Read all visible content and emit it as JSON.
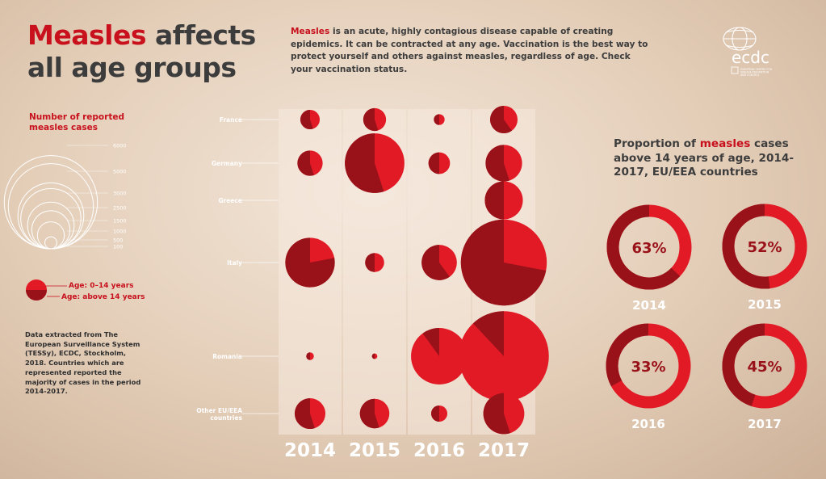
{
  "title": {
    "part1": "Measles",
    "part2": "affects",
    "line2": "all age groups"
  },
  "intro": {
    "highlight": "Measles",
    "text": " is an acute, highly contagious disease capable of creating epidemics. It can be contracted at any age. Vaccination is the best way to protect yourself and others against measles, regardless of age. Check your vaccination status."
  },
  "logo": {
    "name": "ecdc",
    "tagline": "EUROPEAN CENTRE FOR DISEASE PREVENTION AND CONTROL"
  },
  "size_legend": {
    "title": "Number of reported measles cases",
    "levels": [
      {
        "label": "6000",
        "value": 6000
      },
      {
        "label": "5000",
        "value": 5000
      },
      {
        "label": "3000",
        "value": 3000
      },
      {
        "label": "2500",
        "value": 2500
      },
      {
        "label": "1500",
        "value": 1500
      },
      {
        "label": "1000",
        "value": 1000
      },
      {
        "label": "500",
        "value": 500
      },
      {
        "label": "100",
        "value": 100
      }
    ]
  },
  "age_legend": {
    "young": "Age: 0–14 years",
    "old": "Age: above 14 years"
  },
  "source": "Data extracted from The European Surveillance System (TESSy), ECDC, Stockholm, 2018. Countries which are represented reported the majority of cases in the period 2014-2017.",
  "colors": {
    "young": "#e21a26",
    "old": "#9a1219",
    "text_red": "#c8111d",
    "column": "#f6e9de"
  },
  "chart_data": [
    {
      "type": "bubble-pie",
      "description_of_encoding": null,
      "years": [
        "2014",
        "2015",
        "2016",
        "2017"
      ],
      "countries": [
        "France",
        "Germany",
        "Greece",
        "Italy",
        "Romania",
        "Other EU/EEA countries"
      ],
      "series": [
        {
          "country": "France",
          "cases": [
            260,
            360,
            80,
            520
          ],
          "share_above_14": [
            0.55,
            0.55,
            0.5,
            0.6
          ]
        },
        {
          "country": "Germany",
          "cases": [
            440,
            2450,
            320,
            920
          ],
          "share_above_14": [
            0.55,
            0.55,
            0.5,
            0.55
          ]
        },
        {
          "country": "Greece",
          "cases": [
            0,
            0,
            0,
            1000
          ],
          "share_above_14": [
            0,
            0,
            0,
            0.5
          ]
        },
        {
          "country": "Italy",
          "cases": [
            1690,
            250,
            860,
            5100
          ],
          "share_above_14": [
            0.78,
            0.5,
            0.6,
            0.72
          ]
        },
        {
          "country": "Romania",
          "cases": [
            40,
            20,
            2200,
            5600
          ],
          "share_above_14": [
            0.5,
            0.5,
            0.1,
            0.12
          ]
        },
        {
          "country": "Other EU/EEA countries",
          "cases": [
            650,
            600,
            180,
            1160
          ],
          "share_above_14": [
            0.55,
            0.55,
            0.5,
            0.55
          ]
        }
      ]
    },
    {
      "type": "donut",
      "title_parts": [
        "Proportion of ",
        "measles",
        " cases above 14 years of age, 2014-2017, EU/EEA countries"
      ],
      "items": [
        {
          "year": "2014",
          "value": 63,
          "label": "63%"
        },
        {
          "year": "2015",
          "value": 52,
          "label": "52%"
        },
        {
          "year": "2016",
          "value": 33,
          "label": "33%"
        },
        {
          "year": "2017",
          "value": 45,
          "label": "45%"
        }
      ]
    }
  ]
}
